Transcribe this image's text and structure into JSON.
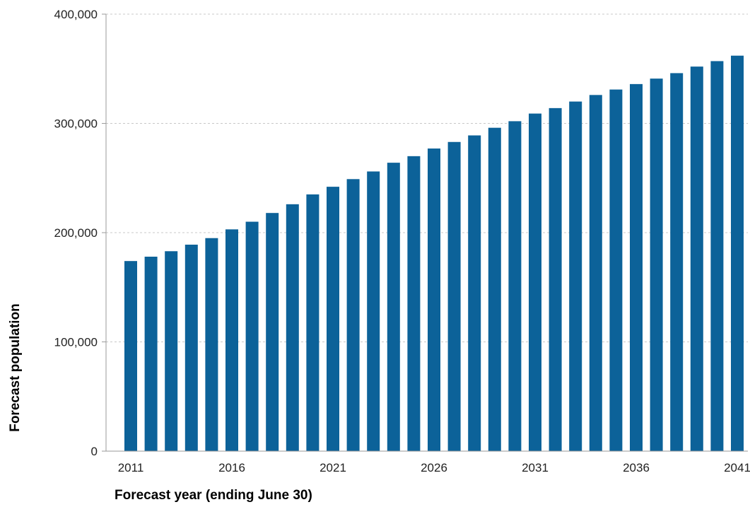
{
  "colors": {
    "bar": "#0c6299",
    "grid": "#c8c8c8",
    "axis": "#9a9a9a"
  },
  "chart_data": {
    "type": "bar",
    "title": "",
    "xlabel": "Forecast year (ending June 30)",
    "ylabel": "Forecast population",
    "ylim": [
      0,
      400000
    ],
    "y_ticks": [
      0,
      100000,
      200000,
      300000,
      400000
    ],
    "y_tick_labels": [
      "0",
      "100,000",
      "200,000",
      "300,000",
      "400,000"
    ],
    "x_tick_labels": [
      "2011",
      "2016",
      "2021",
      "2026",
      "2031",
      "2036",
      "2041"
    ],
    "grid": true,
    "legend": "none",
    "categories": [
      "2011",
      "2012",
      "2013",
      "2014",
      "2015",
      "2016",
      "2017",
      "2018",
      "2019",
      "2020",
      "2021",
      "2022",
      "2023",
      "2024",
      "2025",
      "2026",
      "2027",
      "2028",
      "2029",
      "2030",
      "2031",
      "2032",
      "2033",
      "2034",
      "2035",
      "2036",
      "2037",
      "2038",
      "2039",
      "2040",
      "2041"
    ],
    "series": [
      {
        "values": [
          174000,
          178000,
          183000,
          189000,
          195000,
          203000,
          210000,
          218000,
          226000,
          235000,
          242000,
          249000,
          256000,
          264000,
          270000,
          277000,
          283000,
          289000,
          296000,
          302000,
          309000,
          314000,
          320000,
          326000,
          331000,
          336000,
          341000,
          346000,
          352000,
          357000,
          362000
        ]
      }
    ]
  }
}
